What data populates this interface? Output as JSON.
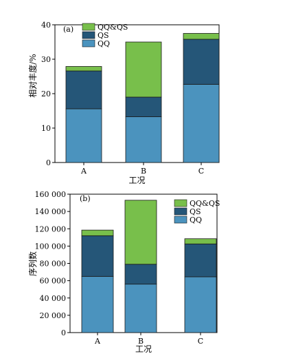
{
  "colors": {
    "QQ": "#4b93be",
    "QS": "#255678",
    "QQ&QS": "#78bf4b",
    "axis": "#000000"
  },
  "chart_data": [
    {
      "type": "bar",
      "stacked": true,
      "panel_label": "(a)",
      "categories": [
        "A",
        "B",
        "C"
      ],
      "series": [
        {
          "name": "QQ",
          "values": [
            15.6,
            13.3,
            22.7
          ]
        },
        {
          "name": "QS",
          "values": [
            11.0,
            5.7,
            13.1
          ]
        },
        {
          "name": "QQ&QS",
          "values": [
            1.3,
            16.0,
            1.7
          ]
        }
      ],
      "xlabel": "工况",
      "ylabel": "相对丰度/%",
      "ylim": [
        0,
        40
      ],
      "yticks": [
        "0",
        "10",
        "20",
        "30",
        "40"
      ],
      "legend_position": "top-left",
      "grid": false
    },
    {
      "type": "bar",
      "stacked": true,
      "panel_label": "(b)",
      "categories": [
        "A",
        "B",
        "C"
      ],
      "series": [
        {
          "name": "QQ",
          "values": [
            65000,
            56000,
            64500
          ]
        },
        {
          "name": "QS",
          "values": [
            47000,
            23000,
            38000
          ]
        },
        {
          "name": "QQ&QS",
          "values": [
            6500,
            74000,
            6000
          ]
        }
      ],
      "xlabel": "工况",
      "ylabel": "序列数",
      "ylim": [
        0,
        160000
      ],
      "yticks": [
        "0",
        "20 000",
        "40 000",
        "60 000",
        "80 000",
        "100 000",
        "120 000",
        "140 000",
        "160 000"
      ],
      "legend_position": "top-right",
      "grid": false
    }
  ]
}
